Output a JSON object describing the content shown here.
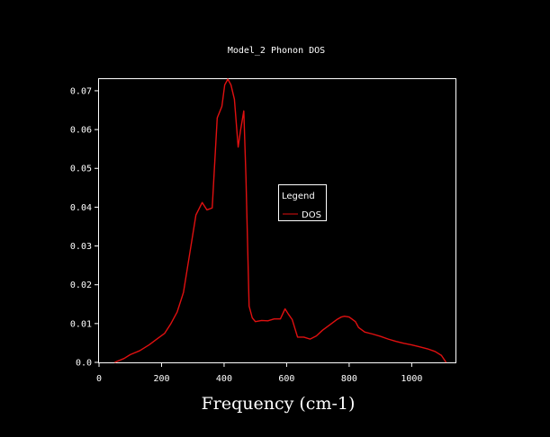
{
  "chart_data": {
    "type": "line",
    "title": "Model_2 Phonon DOS",
    "xlabel": "Frequency (cm-1)",
    "ylabel": "",
    "xlim": [
      0,
      1140
    ],
    "ylim": [
      0,
      0.073
    ],
    "xticks": [
      0,
      200,
      400,
      600,
      800,
      1000
    ],
    "xtick_labels": [
      "0",
      "200",
      "400",
      "600",
      "800",
      "1000"
    ],
    "yticks": [
      0.0,
      0.01,
      0.02,
      0.03,
      0.04,
      0.05,
      0.06,
      0.07
    ],
    "ytick_labels": [
      "0.0",
      "0.01",
      "0.02",
      "0.03",
      "0.04",
      "0.05",
      "0.06",
      "0.07"
    ],
    "grid": false,
    "legend": {
      "title": "Legend",
      "position": "center-right"
    },
    "series": [
      {
        "name": "DOS",
        "color": "#e01010",
        "x": [
          50,
          80,
          100,
          130,
          160,
          185,
          210,
          230,
          250,
          270,
          290,
          310,
          330,
          345,
          362,
          378,
          393,
          402,
          412,
          422,
          433,
          445,
          453,
          463,
          470,
          480,
          490,
          500,
          520,
          540,
          560,
          580,
          595,
          605,
          618,
          635,
          655,
          675,
          695,
          715,
          735,
          760,
          775,
          785,
          800,
          820,
          830,
          850,
          875,
          900,
          925,
          950,
          975,
          1000,
          1025,
          1050,
          1075,
          1095,
          1110
        ],
        "y": [
          0.0,
          0.001,
          0.002,
          0.003,
          0.0045,
          0.006,
          0.0075,
          0.01,
          0.013,
          0.018,
          0.028,
          0.038,
          0.0412,
          0.0393,
          0.0398,
          0.063,
          0.066,
          0.0715,
          0.073,
          0.0715,
          0.0678,
          0.0555,
          0.06,
          0.0648,
          0.0475,
          0.0145,
          0.0115,
          0.0105,
          0.0108,
          0.0107,
          0.0112,
          0.0112,
          0.0138,
          0.0125,
          0.011,
          0.0065,
          0.0065,
          0.006,
          0.0068,
          0.0083,
          0.0095,
          0.011,
          0.0117,
          0.0119,
          0.0117,
          0.0105,
          0.009,
          0.0078,
          0.0073,
          0.0067,
          0.006,
          0.0054,
          0.0049,
          0.0045,
          0.004,
          0.0035,
          0.0028,
          0.0018,
          0.0
        ]
      }
    ]
  }
}
